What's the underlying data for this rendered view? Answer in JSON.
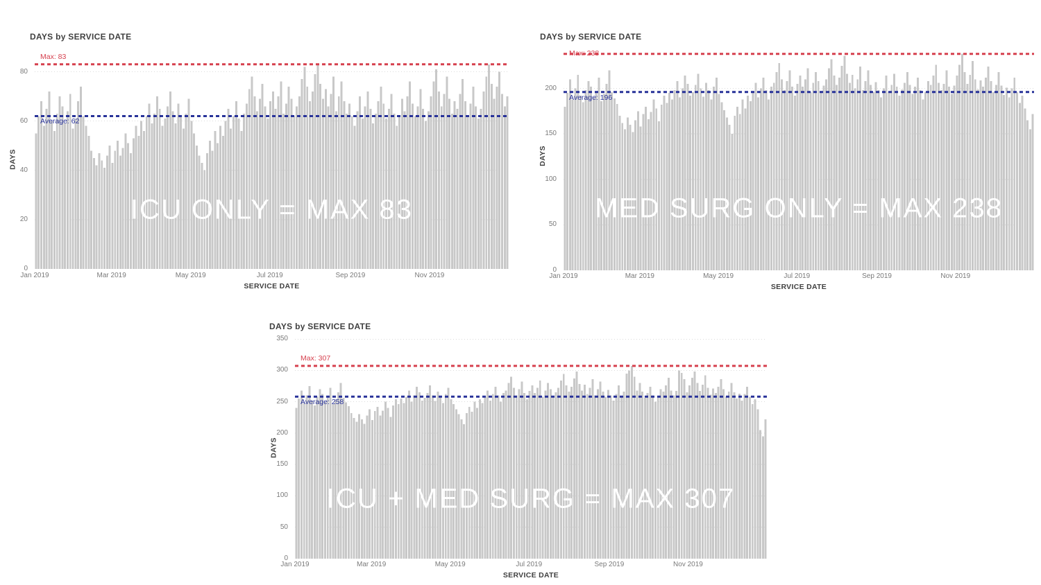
{
  "colors": {
    "bar": "#C8C8C8",
    "max_line": "#D6404E",
    "avg_line": "#283299",
    "grid": "#DBDBDB",
    "title_text": "#404040",
    "axis_text": "#7A7A7A",
    "overlay_text": "#FFFFFF"
  },
  "chart_data": [
    {
      "type": "bar",
      "title": "DAYS by SERVICE DATE",
      "overlay": "ICU ONLY = MAX 83",
      "xlabel": "SERVICE DATE",
      "ylabel": "DAYS",
      "max_label": "Max: 83",
      "max_value": 83,
      "avg_label": "Average: 62",
      "avg_value": 62,
      "max_label_on_line": false,
      "ymax": 88,
      "yticks": [
        0,
        20,
        40,
        60,
        80
      ],
      "xticks": [
        {
          "label": "Jan 2019",
          "pos": 0.0
        },
        {
          "label": "Mar 2019",
          "pos": 0.162
        },
        {
          "label": "May 2019",
          "pos": 0.329
        },
        {
          "label": "Jul 2019",
          "pos": 0.496
        },
        {
          "label": "Sep 2019",
          "pos": 0.666
        },
        {
          "label": "Nov 2019",
          "pos": 0.833
        }
      ],
      "values": [
        55,
        62,
        68,
        58,
        65,
        72,
        60,
        56,
        63,
        70,
        66,
        59,
        64,
        71,
        57,
        61,
        68,
        74,
        62,
        58,
        54,
        48,
        45,
        42,
        47,
        44,
        41,
        46,
        50,
        43,
        48,
        52,
        46,
        49,
        55,
        51,
        47,
        53,
        58,
        54,
        60,
        56,
        62,
        67,
        59,
        63,
        70,
        65,
        58,
        61,
        66,
        72,
        64,
        59,
        67,
        62,
        57,
        63,
        69,
        60,
        55,
        50,
        46,
        43,
        40,
        47,
        52,
        48,
        56,
        51,
        58,
        54,
        60,
        65,
        57,
        62,
        68,
        61,
        56,
        63,
        67,
        73,
        78,
        70,
        64,
        69,
        75,
        66,
        61,
        68,
        72,
        65,
        70,
        76,
        63,
        67,
        74,
        69,
        62,
        66,
        70,
        77,
        82,
        74,
        68,
        72,
        79,
        83,
        75,
        69,
        73,
        66,
        71,
        78,
        64,
        70,
        76,
        68,
        63,
        67,
        62,
        58,
        64,
        70,
        61,
        66,
        72,
        65,
        59,
        63,
        68,
        74,
        67,
        61,
        65,
        71,
        63,
        58,
        62,
        69,
        64,
        70,
        76,
        67,
        62,
        66,
        73,
        65,
        60,
        64,
        70,
        76,
        81,
        72,
        66,
        71,
        78,
        69,
        63,
        68,
        65,
        71,
        77,
        68,
        62,
        67,
        74,
        66,
        61,
        65,
        72,
        78,
        83,
        75,
        69,
        74,
        80,
        71,
        66,
        70
      ]
    },
    {
      "type": "bar",
      "title": "DAYS by SERVICE DATE",
      "overlay": "MED SURG ONLY = MAX 238",
      "xlabel": "SERVICE DATE",
      "ylabel": "DAYS",
      "max_label": "Max: 238",
      "max_value": 238,
      "avg_label": "Average: 196",
      "avg_value": 196,
      "max_label_on_line": true,
      "ymax": 250,
      "yticks": [
        0,
        50,
        100,
        150,
        200
      ],
      "xticks": [
        {
          "label": "Jan 2019",
          "pos": 0.0
        },
        {
          "label": "Mar 2019",
          "pos": 0.162
        },
        {
          "label": "May 2019",
          "pos": 0.329
        },
        {
          "label": "Jul 2019",
          "pos": 0.496
        },
        {
          "label": "Sep 2019",
          "pos": 0.666
        },
        {
          "label": "Nov 2019",
          "pos": 0.833
        }
      ],
      "values": [
        180,
        195,
        210,
        188,
        200,
        215,
        192,
        185,
        198,
        208,
        202,
        190,
        197,
        212,
        186,
        194,
        205,
        220,
        196,
        189,
        183,
        170,
        162,
        155,
        168,
        160,
        152,
        165,
        175,
        158,
        172,
        180,
        166,
        174,
        188,
        178,
        164,
        182,
        192,
        184,
        195,
        188,
        198,
        208,
        190,
        200,
        214,
        205,
        192,
        196,
        204,
        216,
        200,
        191,
        206,
        198,
        188,
        202,
        212,
        194,
        185,
        176,
        168,
        160,
        150,
        170,
        180,
        172,
        188,
        178,
        192,
        186,
        196,
        206,
        190,
        200,
        212,
        198,
        188,
        202,
        206,
        218,
        228,
        210,
        198,
        208,
        220,
        202,
        192,
        205,
        214,
        202,
        210,
        222,
        196,
        206,
        218,
        208,
        195,
        203,
        210,
        222,
        232,
        214,
        204,
        212,
        225,
        236,
        216,
        206,
        215,
        200,
        210,
        224,
        198,
        208,
        220,
        204,
        196,
        207,
        198,
        190,
        200,
        214,
        196,
        204,
        216,
        202,
        192,
        199,
        206,
        218,
        204,
        194,
        202,
        212,
        198,
        188,
        196,
        208,
        204,
        214,
        226,
        206,
        198,
        205,
        220,
        202,
        194,
        203,
        214,
        226,
        238,
        218,
        205,
        215,
        230,
        210,
        199,
        209,
        202,
        212,
        224,
        208,
        196,
        204,
        218,
        203,
        193,
        201,
        190,
        200,
        212,
        196,
        184,
        192,
        178,
        165,
        155,
        172
      ]
    },
    {
      "type": "bar",
      "title": "DAYS by SERVICE DATE",
      "overlay": "ICU + MED SURG = MAX 307",
      "xlabel": "SERVICE DATE",
      "ylabel": "DAYS",
      "max_label": "Max: 307",
      "max_value": 307,
      "avg_label": "Average: 258",
      "avg_value": 258,
      "max_label_on_line": false,
      "ymax": 350,
      "yticks": [
        0,
        50,
        100,
        150,
        200,
        250,
        300,
        350
      ],
      "xticks": [
        {
          "label": "Jan 2019",
          "pos": 0.0
        },
        {
          "label": "Mar 2019",
          "pos": 0.162
        },
        {
          "label": "May 2019",
          "pos": 0.329
        },
        {
          "label": "Jul 2019",
          "pos": 0.496
        },
        {
          "label": "Sep 2019",
          "pos": 0.666
        },
        {
          "label": "Nov 2019",
          "pos": 0.833
        }
      ],
      "values": [
        240,
        255,
        268,
        248,
        260,
        275,
        252,
        244,
        258,
        270,
        262,
        250,
        257,
        272,
        246,
        254,
        265,
        280,
        256,
        249,
        243,
        232,
        224,
        218,
        230,
        222,
        215,
        228,
        238,
        221,
        235,
        242,
        228,
        236,
        250,
        240,
        226,
        244,
        254,
        246,
        255,
        248,
        258,
        268,
        250,
        260,
        274,
        265,
        252,
        256,
        264,
        276,
        260,
        251,
        266,
        258,
        248,
        262,
        272,
        254,
        246,
        238,
        230,
        222,
        214,
        232,
        242,
        234,
        250,
        240,
        254,
        248,
        258,
        268,
        252,
        262,
        274,
        260,
        250,
        264,
        268,
        280,
        290,
        272,
        260,
        270,
        282,
        264,
        254,
        267,
        276,
        264,
        272,
        284,
        258,
        268,
        280,
        270,
        257,
        265,
        272,
        284,
        294,
        276,
        266,
        274,
        287,
        298,
        278,
        268,
        277,
        262,
        272,
        286,
        260,
        270,
        282,
        266,
        258,
        269,
        260,
        252,
        262,
        276,
        258,
        266,
        295,
        300,
        307,
        290,
        268,
        280,
        266,
        256,
        264,
        274,
        260,
        250,
        258,
        270,
        266,
        276,
        288,
        268,
        260,
        267,
        300,
        296,
        286,
        265,
        276,
        288,
        298,
        280,
        267,
        277,
        292,
        272,
        261,
        271,
        264,
        274,
        286,
        270,
        258,
        266,
        280,
        265,
        255,
        263,
        252,
        262,
        274,
        258,
        246,
        254,
        238,
        205,
        195,
        222
      ]
    }
  ]
}
